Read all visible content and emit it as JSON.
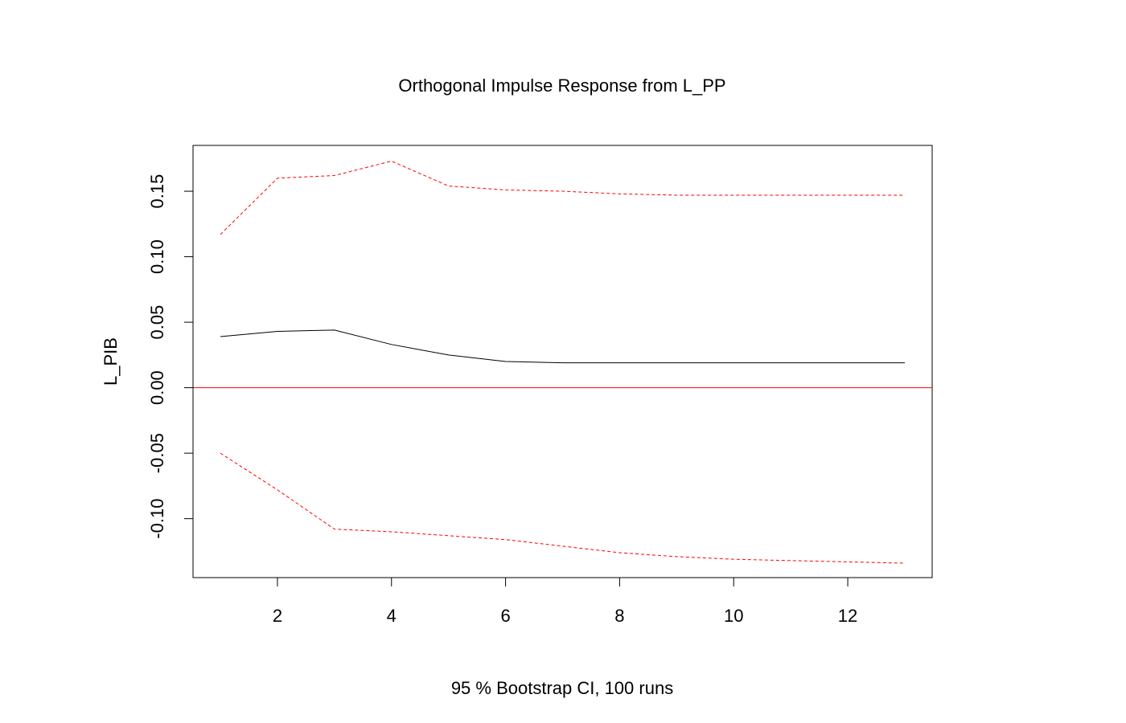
{
  "chart_data": {
    "type": "line",
    "title": "Orthogonal Impulse Response from L_PP",
    "xlabel": "95 % Bootstrap CI,  100 runs",
    "ylabel": "L_PIB",
    "xlim": [
      0.52,
      13.48
    ],
    "ylim": [
      -0.145,
      0.185
    ],
    "x_ticks": [
      2,
      4,
      6,
      8,
      10,
      12
    ],
    "x_tick_labels": [
      "2",
      "4",
      "6",
      "8",
      "10",
      "12"
    ],
    "y_ticks": [
      -0.1,
      -0.05,
      0.0,
      0.05,
      0.1,
      0.15
    ],
    "y_tick_labels": [
      "-0.10",
      "-0.05",
      "0.00",
      "0.05",
      "0.10",
      "0.15"
    ],
    "grid": false,
    "reference_line": {
      "y": 0,
      "color": "#ff0000"
    },
    "x": [
      1,
      2,
      3,
      4,
      5,
      6,
      7,
      8,
      9,
      10,
      11,
      12,
      13
    ],
    "series": [
      {
        "role": "response",
        "values": [
          0.039,
          0.043,
          0.044,
          0.033,
          0.025,
          0.02,
          0.019,
          0.019,
          0.019,
          0.019,
          0.019,
          0.019,
          0.019
        ],
        "color": "#000000",
        "style": "solid"
      },
      {
        "role": "upper",
        "values": [
          0.117,
          0.16,
          0.162,
          0.173,
          0.154,
          0.151,
          0.15,
          0.148,
          0.147,
          0.147,
          0.147,
          0.147,
          0.147
        ],
        "color": "#ff0000",
        "style": "dashed"
      },
      {
        "role": "lower",
        "values": [
          -0.05,
          -0.078,
          -0.108,
          -0.11,
          -0.113,
          -0.116,
          -0.121,
          -0.126,
          -0.129,
          -0.131,
          -0.132,
          -0.133,
          -0.134
        ],
        "color": "#ff0000",
        "style": "dashed"
      }
    ]
  }
}
